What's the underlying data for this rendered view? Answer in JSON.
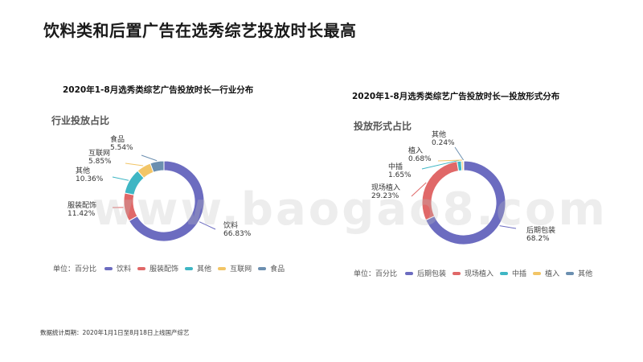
{
  "page": {
    "title": "饮料类和后置广告在选秀综艺投放时长最高",
    "footnote": "数据统计周期：2020年1月1日至8月18日上线国产综艺",
    "watermark": "www.baogao8.com"
  },
  "colors": {
    "purple": "#6c6cc0",
    "red": "#e06868",
    "teal": "#3fb6c4",
    "yellow": "#f2c566",
    "steelblue": "#6b8fb0"
  },
  "chart_data": [
    {
      "type": "pie",
      "variant": "donut",
      "title": "2020年1-8月选秀类综艺广告投放时长—行业分布",
      "subtitle": "行业投放占比",
      "unit_label": "单位：百分比",
      "categories": [
        "饮料",
        "服装配饰",
        "其他",
        "互联网",
        "食品"
      ],
      "values": [
        66.83,
        11.42,
        10.36,
        5.85,
        5.54
      ],
      "labels": [
        "66.83%",
        "11.42%",
        "10.36%",
        "5.85%",
        "5.54%"
      ],
      "colors": [
        "#6c6cc0",
        "#e06868",
        "#3fb6c4",
        "#f2c566",
        "#6b8fb0"
      ],
      "legend": "bottom"
    },
    {
      "type": "pie",
      "variant": "donut",
      "title": "2020年1-8月选秀类综艺广告投放时长—投放形式分布",
      "subtitle": "投放形式占比",
      "unit_label": "单位：百分比",
      "categories": [
        "后期包装",
        "现场植入",
        "中插",
        "植入",
        "其他"
      ],
      "values": [
        68.2,
        29.23,
        1.65,
        0.68,
        0.24
      ],
      "labels": [
        "68.2%",
        "29.23%",
        "1.65%",
        "0.68%",
        "0.24%"
      ],
      "colors": [
        "#6c6cc0",
        "#e06868",
        "#3fb6c4",
        "#f2c566",
        "#6b8fb0"
      ],
      "legend": "bottom"
    }
  ]
}
